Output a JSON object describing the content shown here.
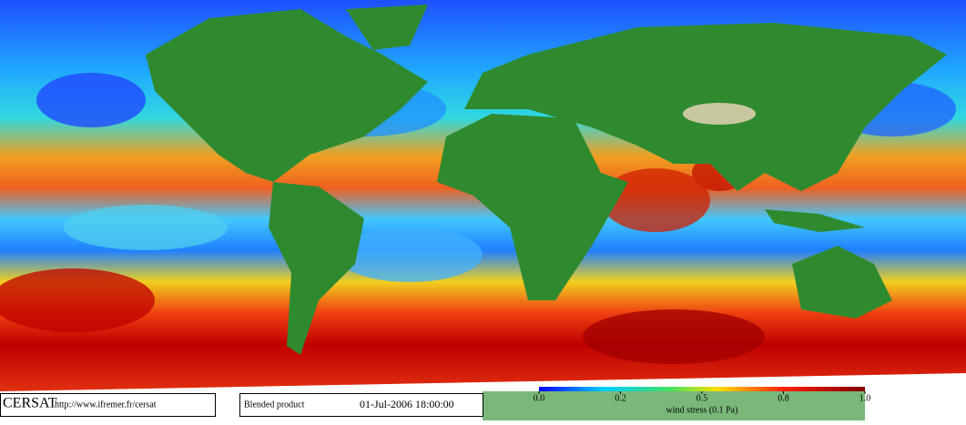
{
  "header": {
    "logo": "CERSAT",
    "url": "http://www.ifremer.fr/cersat"
  },
  "info": {
    "product": "Blended product",
    "datetime": "01-Jul-2006 18:00:00"
  },
  "colorbar": {
    "label": "wind stress (0.1 Pa)",
    "ticks": [
      {
        "value": 0,
        "label": "0.0"
      },
      {
        "value": 0.2,
        "label": "0.2"
      },
      {
        "value": 0.5,
        "label": "0.5"
      },
      {
        "value": 0.8,
        "label": "0.8"
      },
      {
        "value": 1,
        "label": "1.0"
      }
    ]
  }
}
